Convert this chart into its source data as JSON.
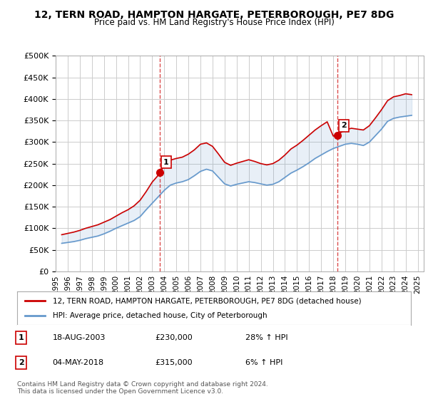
{
  "title": "12, TERN ROAD, HAMPTON HARGATE, PETERBOROUGH, PE7 8DG",
  "subtitle": "Price paid vs. HM Land Registry's House Price Index (HPI)",
  "ylabel_ticks": [
    "£0",
    "£50K",
    "£100K",
    "£150K",
    "£200K",
    "£250K",
    "£300K",
    "£350K",
    "£400K",
    "£450K",
    "£500K"
  ],
  "ylim": [
    0,
    500000
  ],
  "xlim_start": 1995.0,
  "xlim_end": 2025.5,
  "hpi_line_color": "#6699cc",
  "property_line_color": "#cc0000",
  "marker_color": "#cc0000",
  "vline_color": "#cc0000",
  "grid_color": "#cccccc",
  "background_color": "#ffffff",
  "sale1": {
    "year_x": 2003.63,
    "price": 230000,
    "label": "1"
  },
  "sale2": {
    "year_x": 2018.34,
    "price": 315000,
    "label": "2"
  },
  "legend_line1": "12, TERN ROAD, HAMPTON HARGATE, PETERBOROUGH, PE7 8DG (detached house)",
  "legend_line2": "HPI: Average price, detached house, City of Peterborough",
  "table_rows": [
    {
      "num": "1",
      "date": "18-AUG-2003",
      "price": "£230,000",
      "change": "28% ↑ HPI"
    },
    {
      "num": "2",
      "date": "04-MAY-2018",
      "price": "£315,000",
      "change": "6% ↑ HPI"
    }
  ],
  "footnote": "Contains HM Land Registry data © Crown copyright and database right 2024.\nThis data is licensed under the Open Government Licence v3.0.",
  "hpi_data": {
    "years": [
      1995.5,
      1996.0,
      1996.5,
      1997.0,
      1997.5,
      1998.0,
      1998.5,
      1999.0,
      1999.5,
      2000.0,
      2000.5,
      2001.0,
      2001.5,
      2002.0,
      2002.5,
      2003.0,
      2003.5,
      2004.0,
      2004.5,
      2005.0,
      2005.5,
      2006.0,
      2006.5,
      2007.0,
      2007.5,
      2008.0,
      2008.5,
      2009.0,
      2009.5,
      2010.0,
      2010.5,
      2011.0,
      2011.5,
      2012.0,
      2012.5,
      2013.0,
      2013.5,
      2014.0,
      2014.5,
      2015.0,
      2015.5,
      2016.0,
      2016.5,
      2017.0,
      2017.5,
      2018.0,
      2018.5,
      2019.0,
      2019.5,
      2020.0,
      2020.5,
      2021.0,
      2021.5,
      2022.0,
      2022.5,
      2023.0,
      2023.5,
      2024.0,
      2024.5
    ],
    "values": [
      65000,
      67000,
      69000,
      72000,
      76000,
      79000,
      82000,
      87000,
      93000,
      100000,
      106000,
      112000,
      118000,
      127000,
      143000,
      158000,
      173000,
      188000,
      200000,
      205000,
      208000,
      213000,
      222000,
      232000,
      237000,
      233000,
      218000,
      203000,
      198000,
      202000,
      205000,
      208000,
      206000,
      203000,
      200000,
      202000,
      208000,
      218000,
      228000,
      235000,
      243000,
      252000,
      262000,
      270000,
      278000,
      285000,
      290000,
      295000,
      297000,
      295000,
      292000,
      300000,
      315000,
      330000,
      348000,
      355000,
      358000,
      360000,
      362000
    ]
  },
  "property_data": {
    "years": [
      1995.5,
      1996.0,
      1996.5,
      1997.0,
      1997.5,
      1998.0,
      1998.5,
      1999.0,
      1999.5,
      2000.0,
      2000.5,
      2001.0,
      2001.5,
      2002.0,
      2002.5,
      2003.0,
      2003.5,
      2003.63,
      2004.0,
      2004.5,
      2005.0,
      2005.5,
      2006.0,
      2006.5,
      2007.0,
      2007.5,
      2008.0,
      2008.5,
      2009.0,
      2009.5,
      2010.0,
      2010.5,
      2011.0,
      2011.5,
      2012.0,
      2012.5,
      2013.0,
      2013.5,
      2014.0,
      2014.5,
      2015.0,
      2015.5,
      2016.0,
      2016.5,
      2017.0,
      2017.5,
      2018.0,
      2018.34,
      2018.5,
      2019.0,
      2019.5,
      2020.0,
      2020.5,
      2021.0,
      2021.5,
      2022.0,
      2022.5,
      2023.0,
      2023.5,
      2024.0,
      2024.5
    ],
    "values": [
      85000,
      88000,
      91000,
      95000,
      100000,
      104000,
      108000,
      114000,
      120000,
      128000,
      136000,
      143000,
      152000,
      165000,
      185000,
      207000,
      223000,
      230000,
      245000,
      258000,
      262000,
      265000,
      272000,
      282000,
      295000,
      298000,
      290000,
      272000,
      253000,
      246000,
      251000,
      255000,
      259000,
      255000,
      250000,
      247000,
      250000,
      258000,
      270000,
      284000,
      293000,
      304000,
      316000,
      328000,
      338000,
      347000,
      314000,
      315000,
      320000,
      328000,
      332000,
      330000,
      328000,
      338000,
      356000,
      375000,
      396000,
      405000,
      408000,
      412000,
      410000
    ]
  }
}
